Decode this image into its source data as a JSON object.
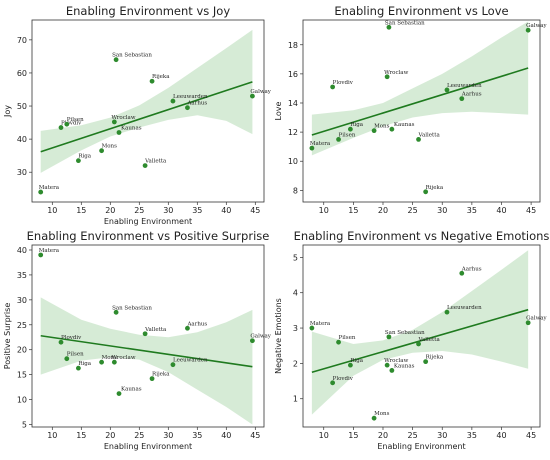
{
  "colors": {
    "point": "#2e8b2e",
    "line": "#1f7a1f",
    "band": "#cfe8cf"
  },
  "chart_data": [
    {
      "type": "scatter",
      "title": "Enabling Environment vs Joy",
      "xlabel": "Enabling Environment",
      "ylabel": "Joy",
      "xlim": [
        6.5,
        46.5
      ],
      "ylim": [
        21,
        76
      ],
      "xticks": [
        10,
        15,
        20,
        25,
        30,
        35,
        40,
        45
      ],
      "yticks": [
        30,
        40,
        50,
        60,
        70
      ],
      "fit_line": [
        [
          8,
          36.2
        ],
        [
          44.5,
          57.3
        ]
      ],
      "band_upper": [
        [
          8,
          42.5
        ],
        [
          15,
          44.2
        ],
        [
          20,
          46.5
        ],
        [
          25,
          50.2
        ],
        [
          30,
          55.5
        ],
        [
          35,
          61.5
        ],
        [
          40,
          67.5
        ],
        [
          44.5,
          73
        ]
      ],
      "band_lower": [
        [
          8,
          29.8
        ],
        [
          15,
          36.6
        ],
        [
          20,
          40.8
        ],
        [
          25,
          43.5
        ],
        [
          30,
          45.8
        ],
        [
          35,
          47.2
        ],
        [
          40,
          45.5
        ],
        [
          44.5,
          41.5
        ]
      ],
      "points": [
        {
          "label": "Matera",
          "x": 8,
          "y": 24
        },
        {
          "label": "Plovdiv",
          "x": 11.5,
          "y": 43.5
        },
        {
          "label": "Pilsen",
          "x": 12.5,
          "y": 44.5
        },
        {
          "label": "Riga",
          "x": 14.5,
          "y": 33.5
        },
        {
          "label": "Mons",
          "x": 18.5,
          "y": 36.5
        },
        {
          "label": "San Sebastian",
          "x": 21,
          "y": 64
        },
        {
          "label": "Wroclaw",
          "x": 20.7,
          "y": 45.2
        },
        {
          "label": "Kaunas",
          "x": 21.5,
          "y": 42
        },
        {
          "label": "Valletta",
          "x": 26,
          "y": 32
        },
        {
          "label": "Rijeka",
          "x": 27.2,
          "y": 57.5
        },
        {
          "label": "Leeuwarden",
          "x": 30.8,
          "y": 51.5
        },
        {
          "label": "Aarhus",
          "x": 33.3,
          "y": 49.5
        },
        {
          "label": "Galway",
          "x": 44.5,
          "y": 53
        }
      ]
    },
    {
      "type": "scatter",
      "title": "Enabling Environment vs Love",
      "xlabel": "",
      "ylabel": "Love",
      "xlim": [
        6.5,
        46.5
      ],
      "ylim": [
        7.2,
        19.7
      ],
      "xticks": [
        10,
        15,
        20,
        25,
        30,
        35,
        40,
        45
      ],
      "yticks": [
        8,
        10,
        12,
        14,
        16,
        18
      ],
      "fit_line": [
        [
          8,
          11.8
        ],
        [
          44.5,
          16.4
        ]
      ],
      "band_upper": [
        [
          8,
          13.2
        ],
        [
          15,
          13.5
        ],
        [
          20,
          14.0
        ],
        [
          25,
          15.0
        ],
        [
          30,
          16.0
        ],
        [
          35,
          17.2
        ],
        [
          40,
          18.5
        ],
        [
          44.5,
          19.6
        ]
      ],
      "band_lower": [
        [
          8,
          10.4
        ],
        [
          15,
          11.6
        ],
        [
          20,
          12.4
        ],
        [
          25,
          13.0
        ],
        [
          30,
          13.3
        ],
        [
          35,
          13.4
        ],
        [
          40,
          13.3
        ],
        [
          44.5,
          13.2
        ]
      ],
      "points": [
        {
          "label": "Matera",
          "x": 8,
          "y": 10.9
        },
        {
          "label": "Plovdiv",
          "x": 11.5,
          "y": 15.1
        },
        {
          "label": "Pilsen",
          "x": 12.5,
          "y": 11.5
        },
        {
          "label": "Riga",
          "x": 14.5,
          "y": 12.2
        },
        {
          "label": "Mons",
          "x": 18.5,
          "y": 12.1
        },
        {
          "label": "San Sebastian",
          "x": 21,
          "y": 19.2
        },
        {
          "label": "Wroclaw",
          "x": 20.7,
          "y": 15.8
        },
        {
          "label": "Kaunas",
          "x": 21.5,
          "y": 12.2
        },
        {
          "label": "Valletta",
          "x": 26,
          "y": 11.5
        },
        {
          "label": "Rijeka",
          "x": 27.2,
          "y": 7.9
        },
        {
          "label": "Leeuwarden",
          "x": 30.8,
          "y": 14.9
        },
        {
          "label": "Aarhus",
          "x": 33.3,
          "y": 14.3
        },
        {
          "label": "Galway",
          "x": 44.5,
          "y": 19
        }
      ]
    },
    {
      "type": "scatter",
      "title": "Enabling Environment vs Positive Surprise",
      "xlabel": "Enabling Environment",
      "ylabel": "Positive Surprise",
      "xlim": [
        6.5,
        46.5
      ],
      "ylim": [
        4.5,
        41
      ],
      "xticks": [
        10,
        15,
        20,
        25,
        30,
        35,
        40,
        45
      ],
      "yticks": [
        5,
        10,
        15,
        20,
        25,
        30,
        35,
        40
      ],
      "fit_line": [
        [
          8,
          22.8
        ],
        [
          44.5,
          16.6
        ]
      ],
      "band_upper": [
        [
          8,
          30.5
        ],
        [
          15,
          26.0
        ],
        [
          20,
          24.2
        ],
        [
          25,
          23.0
        ],
        [
          30,
          22.5
        ],
        [
          35,
          23.5
        ],
        [
          40,
          25.5
        ],
        [
          44.5,
          28.0
        ]
      ],
      "band_lower": [
        [
          8,
          15.0
        ],
        [
          15,
          17.8
        ],
        [
          20,
          18.5
        ],
        [
          25,
          18.0
        ],
        [
          30,
          15.5
        ],
        [
          35,
          12.0
        ],
        [
          40,
          8.5
        ],
        [
          44.5,
          5.0
        ]
      ],
      "points": [
        {
          "label": "Matera",
          "x": 8,
          "y": 39
        },
        {
          "label": "Plovdiv",
          "x": 11.5,
          "y": 21.5
        },
        {
          "label": "Pilsen",
          "x": 12.5,
          "y": 18.2
        },
        {
          "label": "Riga",
          "x": 14.5,
          "y": 16.3
        },
        {
          "label": "Mons",
          "x": 18.5,
          "y": 17.5
        },
        {
          "label": "San Sebastian",
          "x": 21,
          "y": 27.5
        },
        {
          "label": "Wroclaw",
          "x": 20.7,
          "y": 17.5
        },
        {
          "label": "Kaunas",
          "x": 21.5,
          "y": 11.2
        },
        {
          "label": "Valletta",
          "x": 26,
          "y": 23.2
        },
        {
          "label": "Rijeka",
          "x": 27.2,
          "y": 14.2
        },
        {
          "label": "Leeuwarden",
          "x": 30.8,
          "y": 17
        },
        {
          "label": "Aarhus",
          "x": 33.3,
          "y": 24.3
        },
        {
          "label": "Galway",
          "x": 44.5,
          "y": 21.8
        }
      ]
    },
    {
      "type": "scatter",
      "title": "Enabling Environment vs Negative Emotions",
      "xlabel": "Enabling Environment",
      "ylabel": "Negative Emotions",
      "xlim": [
        6.5,
        46.5
      ],
      "ylim": [
        0.2,
        5.35
      ],
      "xticks": [
        10,
        15,
        20,
        25,
        30,
        35,
        40,
        45
      ],
      "yticks": [
        1,
        2,
        3,
        4,
        5
      ],
      "fit_line": [
        [
          8,
          1.75
        ],
        [
          44.5,
          3.52
        ]
      ],
      "band_upper": [
        [
          8,
          2.9
        ],
        [
          15,
          2.55
        ],
        [
          20,
          2.65
        ],
        [
          25,
          2.95
        ],
        [
          30,
          3.45
        ],
        [
          35,
          4.05
        ],
        [
          40,
          4.65
        ],
        [
          44.5,
          5.2
        ]
      ],
      "band_lower": [
        [
          8,
          0.55
        ],
        [
          15,
          1.65
        ],
        [
          20,
          2.1
        ],
        [
          25,
          2.3
        ],
        [
          30,
          2.35
        ],
        [
          35,
          2.25
        ],
        [
          40,
          2.05
        ],
        [
          44.5,
          1.85
        ]
      ],
      "points": [
        {
          "label": "Matera",
          "x": 8,
          "y": 3
        },
        {
          "label": "Plovdiv",
          "x": 11.5,
          "y": 1.45
        },
        {
          "label": "Pilsen",
          "x": 12.5,
          "y": 2.6
        },
        {
          "label": "Riga",
          "x": 14.5,
          "y": 1.95
        },
        {
          "label": "Mons",
          "x": 18.5,
          "y": 0.45
        },
        {
          "label": "San Sebastian",
          "x": 21,
          "y": 2.75
        },
        {
          "label": "Wroclaw",
          "x": 20.7,
          "y": 1.95
        },
        {
          "label": "Kaunas",
          "x": 21.5,
          "y": 1.8
        },
        {
          "label": "Valletta",
          "x": 26,
          "y": 2.55
        },
        {
          "label": "Rijeka",
          "x": 27.2,
          "y": 2.05
        },
        {
          "label": "Leeuwarden",
          "x": 30.8,
          "y": 3.45
        },
        {
          "label": "Aarhus",
          "x": 33.3,
          "y": 4.55
        },
        {
          "label": "Galway",
          "x": 44.5,
          "y": 3.15
        }
      ]
    }
  ]
}
